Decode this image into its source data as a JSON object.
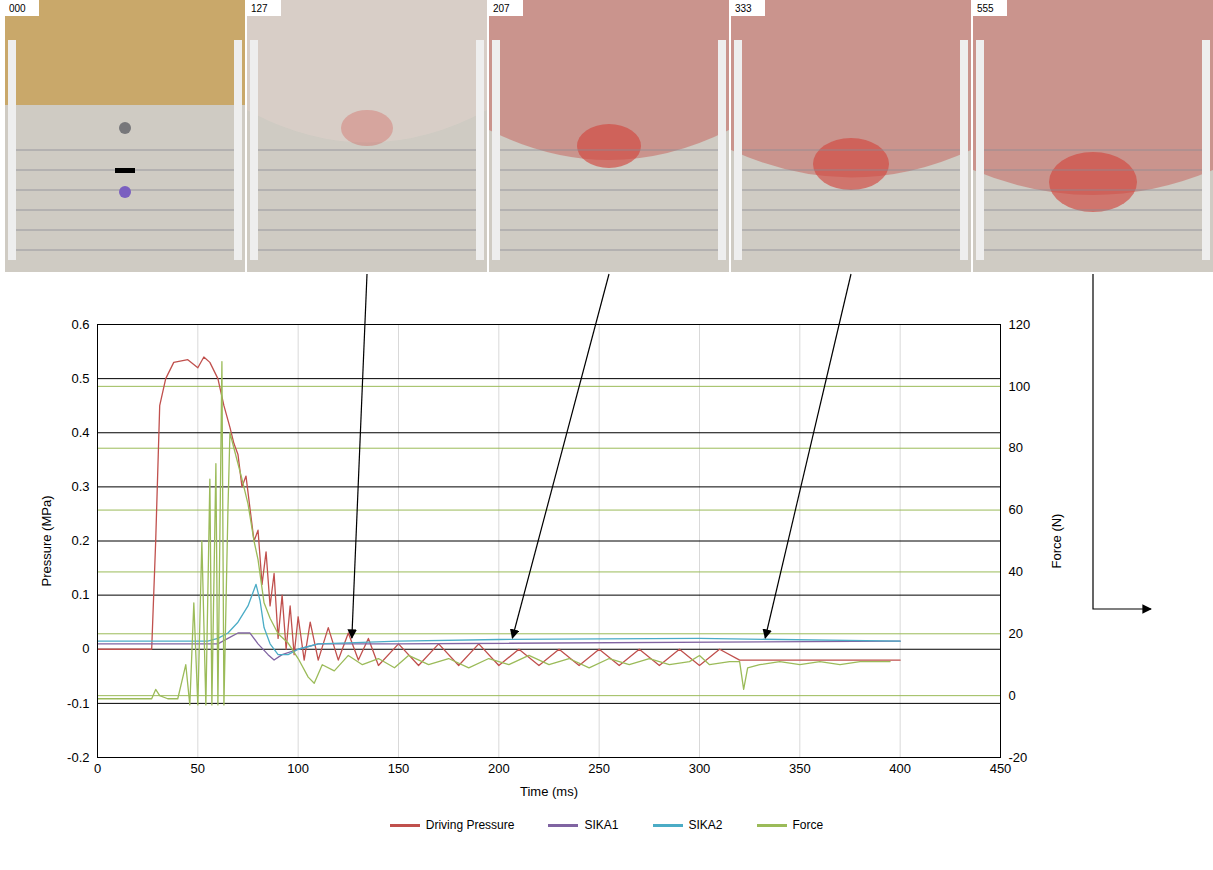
{
  "chart_data": {
    "type": "line",
    "xlabel": "Time (ms)",
    "ylabel": "Pressure (MPa)",
    "y2label": "Force (N)",
    "xlim": [
      0,
      450
    ],
    "xticks": [
      0,
      50,
      100,
      150,
      200,
      250,
      300,
      350,
      400,
      450
    ],
    "ylim": [
      -0.2,
      0.6
    ],
    "yticks": [
      -0.2,
      -0.1,
      0,
      0.1,
      0.2,
      0.3,
      0.4,
      0.5,
      0.6
    ],
    "y2lim": [
      -20,
      120
    ],
    "y2ticks": [
      -20,
      0,
      20,
      40,
      60,
      80,
      100,
      120
    ],
    "grid": true,
    "legend": "bottom",
    "annotations": [
      {
        "text": "000"
      },
      {
        "text": "127",
        "x": 127
      },
      {
        "text": "207",
        "x": 207
      },
      {
        "text": "333",
        "x": 333
      },
      {
        "text": "555",
        "x": 555
      }
    ],
    "series": [
      {
        "name": "Driving Pressure",
        "color": "#c0504d",
        "x": [
          0,
          27,
          29,
          31,
          34,
          38,
          45,
          50,
          53,
          56,
          60,
          63,
          66,
          68,
          70,
          72,
          74,
          76,
          78,
          80,
          82,
          84,
          86,
          88,
          90,
          92,
          94,
          96,
          98,
          100,
          103,
          106,
          110,
          115,
          120,
          125,
          130,
          135,
          140,
          150,
          160,
          170,
          180,
          190,
          200,
          210,
          220,
          230,
          240,
          250,
          260,
          270,
          280,
          290,
          300,
          310,
          320,
          322,
          400
        ],
        "values": [
          0,
          0,
          0.2,
          0.45,
          0.5,
          0.53,
          0.535,
          0.52,
          0.54,
          0.53,
          0.5,
          0.45,
          0.41,
          0.38,
          0.36,
          0.3,
          0.32,
          0.26,
          0.2,
          0.22,
          0.12,
          0.18,
          0.08,
          0.14,
          0.02,
          0.1,
          0,
          0.08,
          -0.01,
          0.06,
          -0.02,
          0.05,
          -0.02,
          0.04,
          -0.02,
          0.03,
          -0.02,
          0.02,
          -0.03,
          0.01,
          -0.03,
          0.01,
          -0.03,
          0.01,
          -0.03,
          0,
          -0.03,
          0,
          -0.03,
          0,
          -0.03,
          0,
          -0.03,
          0,
          -0.03,
          0,
          -0.02,
          -0.02,
          -0.02
        ]
      },
      {
        "name": "SIKA1",
        "color": "#8064a2",
        "x": [
          0,
          60,
          65,
          70,
          76,
          80,
          85,
          88,
          92,
          100,
          110,
          150,
          400
        ],
        "values": [
          0.01,
          0.01,
          0.02,
          0.03,
          0.03,
          0.01,
          -0.01,
          -0.02,
          -0.01,
          0,
          0.01,
          0.01,
          0.015
        ]
      },
      {
        "name": "SIKA2",
        "color": "#4bacc6",
        "x": [
          0,
          55,
          60,
          65,
          70,
          75,
          79,
          81,
          83,
          86,
          90,
          95,
          100,
          110,
          150,
          200,
          300,
          400
        ],
        "values": [
          0.015,
          0.015,
          0.02,
          0.03,
          0.05,
          0.08,
          0.12,
          0.09,
          0.04,
          0.01,
          -0.01,
          -0.01,
          0,
          0.01,
          0.015,
          0.018,
          0.02,
          0.015
        ]
      },
      {
        "name": "Force",
        "color": "#9bbb59",
        "axis": "y2",
        "x": [
          0,
          27,
          29,
          31,
          35,
          40,
          44,
          46,
          48,
          50,
          52,
          54,
          56,
          57,
          59,
          60,
          62,
          63,
          65,
          66,
          68,
          72,
          75,
          78,
          80,
          83,
          86,
          90,
          95,
          100,
          105,
          108,
          112,
          118,
          125,
          132,
          140,
          148,
          155,
          165,
          175,
          185,
          195,
          205,
          215,
          225,
          235,
          245,
          255,
          265,
          275,
          285,
          295,
          300,
          305,
          315,
          320,
          322,
          324,
          330,
          340,
          350,
          360,
          370,
          380,
          390,
          395
        ],
        "values": [
          -1,
          -1,
          2,
          0,
          -1,
          -1,
          10,
          -3,
          30,
          -3,
          50,
          -3,
          70,
          -3,
          75,
          -3,
          108,
          -3,
          60,
          85,
          80,
          70,
          62,
          50,
          44,
          30,
          25,
          20,
          17,
          12,
          6,
          4,
          10,
          8,
          13,
          10,
          12,
          9,
          13,
          10,
          12,
          9,
          12,
          10,
          13,
          10,
          12,
          9,
          12,
          10,
          12,
          10,
          11,
          13,
          10,
          11,
          11,
          2,
          9,
          10,
          11,
          10,
          11,
          10,
          11,
          11,
          11
        ]
      }
    ]
  }
}
